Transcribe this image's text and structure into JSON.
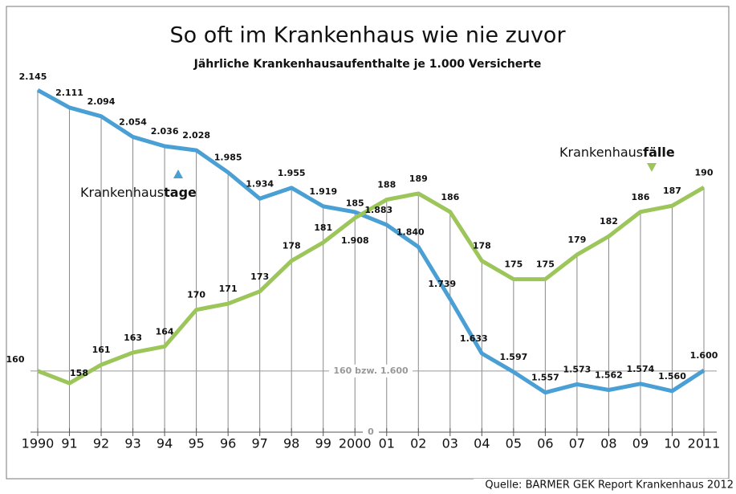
{
  "chart_data": {
    "type": "line",
    "title": "So oft im Krankenhaus wie nie zuvor",
    "subtitle": "Jährliche Krankenhausaufenthalte je 1.000 Versicherte",
    "source": "Quelle: BARMER GEK Report Krankenhaus 2012",
    "categories": [
      "1990",
      "91",
      "92",
      "93",
      "94",
      "95",
      "96",
      "97",
      "98",
      "99",
      "2000",
      "01",
      "02",
      "03",
      "04",
      "05",
      "06",
      "07",
      "08",
      "09",
      "10",
      "2011"
    ],
    "series": [
      {
        "name_parts": [
          "Krankenhaus",
          "tage"
        ],
        "color": "#4a9fd4",
        "axis": "y2",
        "values": [
          2145,
          2111,
          2094,
          2054,
          2036,
          2028,
          1985,
          1934,
          1955,
          1919,
          1908,
          1883,
          1840,
          1739,
          1633,
          1597,
          1557,
          1573,
          1562,
          1574,
          1560,
          1600
        ],
        "value_labels": [
          "2.145",
          "2.111",
          "2.094",
          "2.054",
          "2.036",
          "2.028",
          "1.985",
          "1.934",
          "1.955",
          "1.919",
          "1.908",
          "1.883",
          "1.840",
          "1.739",
          "1.633",
          "1.597",
          "1.557",
          "1.573",
          "1.562",
          "1.574",
          "1.560",
          "1.600"
        ]
      },
      {
        "name_parts": [
          "Krankenhaus",
          "fälle"
        ],
        "color": "#9cc55a",
        "values": [
          160,
          158,
          161,
          163,
          164,
          170,
          171,
          173,
          178,
          181,
          185,
          188,
          189,
          186,
          178,
          175,
          175,
          179,
          182,
          186,
          187,
          190
        ]
      }
    ],
    "ylim": [
      150,
      207.5
    ],
    "y2lim": [
      1480,
      2164
    ],
    "yticks": [
      {
        "value": 160,
        "label": "160 bzw. 1.600"
      }
    ],
    "baseline_label": "0"
  }
}
